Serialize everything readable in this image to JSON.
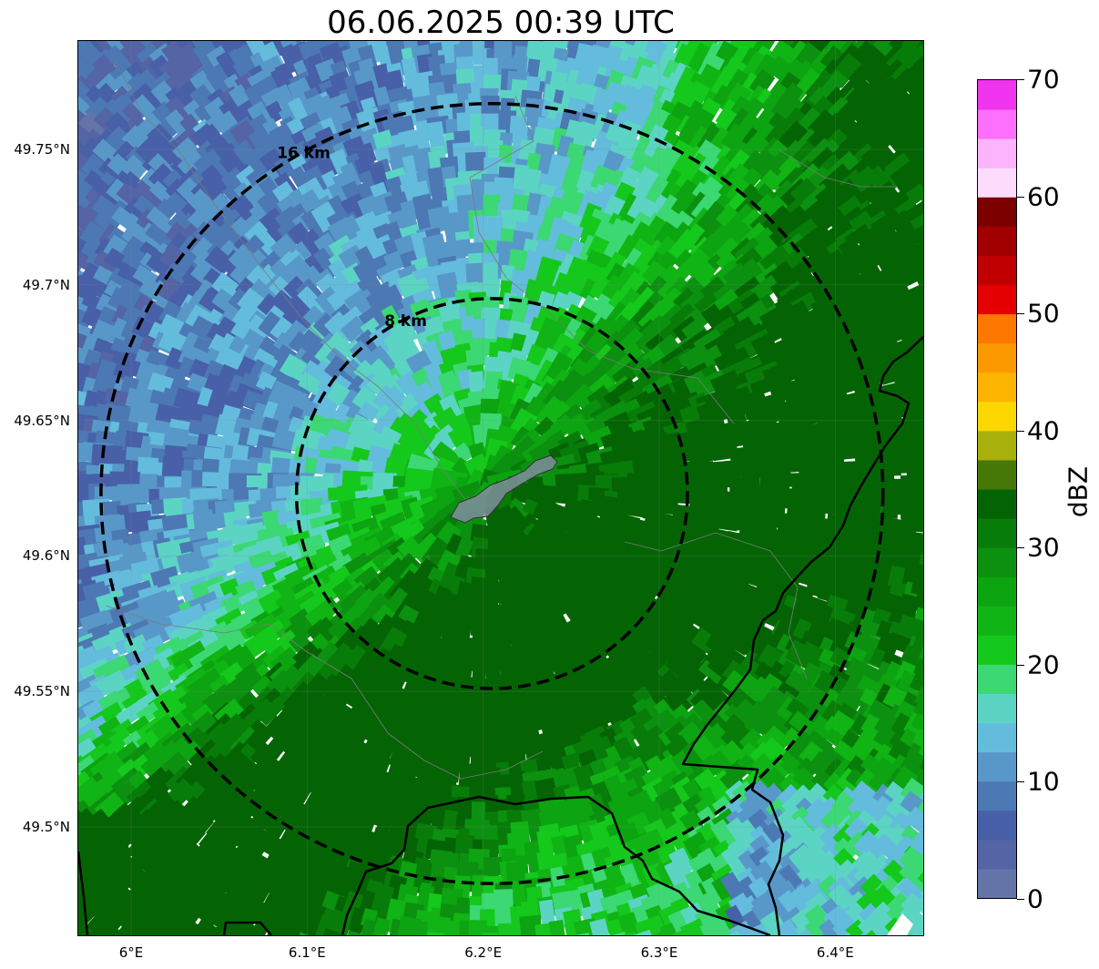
{
  "title": "06.06.2025 00:39 UTC",
  "map": {
    "lon_range": [
      5.97,
      6.45
    ],
    "lat_range": [
      49.46,
      49.79
    ],
    "lat_ticks": [
      {
        "value": 49.75,
        "label": "49.75°N"
      },
      {
        "value": 49.7,
        "label": "49.7°N"
      },
      {
        "value": 49.65,
        "label": "49.65°N"
      },
      {
        "value": 49.6,
        "label": "49.6°N"
      },
      {
        "value": 49.55,
        "label": "49.55°N"
      },
      {
        "value": 49.5,
        "label": "49.5°N"
      }
    ],
    "lon_ticks": [
      {
        "value": 6.0,
        "label": "6°E"
      },
      {
        "value": 6.1,
        "label": "6.1°E"
      },
      {
        "value": 6.2,
        "label": "6.2°E"
      },
      {
        "value": 6.3,
        "label": "6.3°E"
      },
      {
        "value": 6.4,
        "label": "6.4°E"
      }
    ],
    "center": {
      "lon": 6.205,
      "lat": 49.623
    },
    "range_rings": [
      {
        "radius_km": 8,
        "label": "8 km"
      },
      {
        "radius_km": 16,
        "label": "16 km"
      }
    ],
    "reflectivity_field": "radar reflectivity composite (dBZ)"
  },
  "colorbar": {
    "label": "dBZ",
    "min": 0,
    "max": 70,
    "ticks": [
      {
        "value": 0,
        "label": "0"
      },
      {
        "value": 10,
        "label": "10"
      },
      {
        "value": 20,
        "label": "20"
      },
      {
        "value": 30,
        "label": "30"
      },
      {
        "value": 40,
        "label": "40"
      },
      {
        "value": 50,
        "label": "50"
      },
      {
        "value": 60,
        "label": "60"
      },
      {
        "value": 70,
        "label": "70"
      }
    ],
    "colors": [
      "#6474a8",
      "#5464a4",
      "#4760a8",
      "#4c78b4",
      "#5898c8",
      "#64bcdc",
      "#5cd4c4",
      "#3cd874",
      "#14c81c",
      "#10b414",
      "#0ca410",
      "#0c9010",
      "#087c08",
      "#046404",
      "#467808",
      "#a8b00c",
      "#fcd800",
      "#fcb400",
      "#fc9800",
      "#fc7800",
      "#e40000",
      "#c00000",
      "#a00000",
      "#7c0000",
      "#fcdcfc",
      "#fcb4fc",
      "#fc70fc",
      "#f034f0"
    ]
  }
}
